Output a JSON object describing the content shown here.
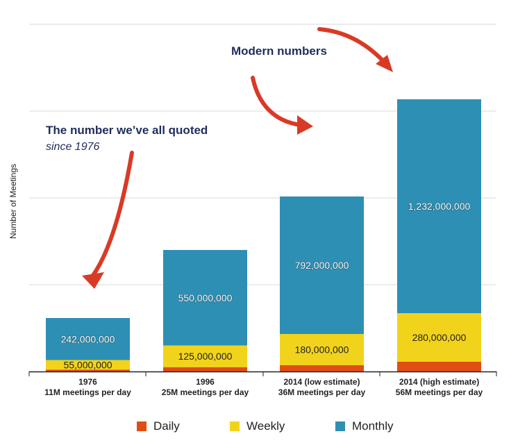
{
  "chart_data": {
    "type": "bar",
    "stacked": true,
    "ylabel": "Number of Meetings",
    "ylim": [
      0,
      2000000000
    ],
    "grid": true,
    "legend_position": "bottom",
    "categories": [
      {
        "line1": "1976",
        "line2": "11M meetings per day"
      },
      {
        "line1": "1996",
        "line2": "25M meetings per day"
      },
      {
        "line1": "2014 (low estimate)",
        "line2": "36M meetings per day"
      },
      {
        "line1": "2014 (high estimate)",
        "line2": "56M meetings per day"
      }
    ],
    "series": [
      {
        "name": "Daily",
        "color": "#e04e13",
        "values": [
          11000000,
          25000000,
          36000000,
          56000000
        ],
        "labels": [
          "",
          "",
          "",
          ""
        ]
      },
      {
        "name": "Weekly",
        "color": "#f2d31b",
        "values": [
          55000000,
          125000000,
          180000000,
          280000000
        ],
        "labels": [
          "55,000,000",
          "125,000,000",
          "180,000,000",
          "280,000,000"
        ]
      },
      {
        "name": "Monthly",
        "color": "#2e8fb4",
        "values": [
          242000000,
          550000000,
          792000000,
          1232000000
        ],
        "labels": [
          "242,000,000",
          "550,000,000",
          "792,000,000",
          "1,232,000,000"
        ]
      }
    ]
  },
  "annotations": {
    "quoted_title": "The number we’ve all quoted",
    "quoted_sub": "since 1976",
    "modern": "Modern numbers"
  },
  "colors": {
    "arrow": "#d93a26",
    "annotation_text": "#1f2d5c",
    "grid": "#d8d8d8"
  }
}
